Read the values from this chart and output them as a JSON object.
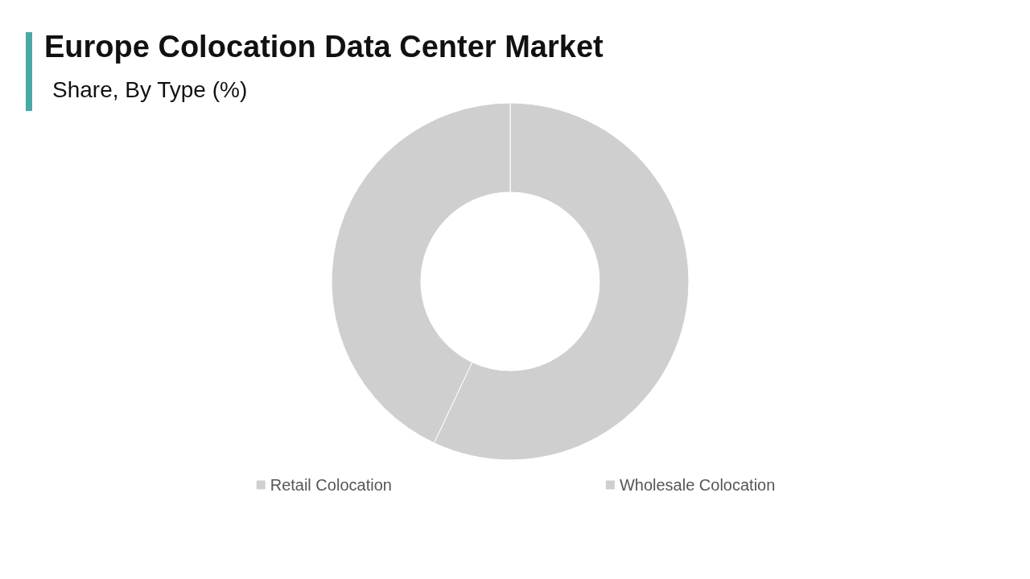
{
  "chart_data": {
    "type": "donut",
    "title": "Europe Colocation Data Center Market",
    "subtitle": "Share, By Type (%)",
    "categories": [
      "Retail Colocation",
      "Wholesale Colocation"
    ],
    "values": [
      57,
      43
    ],
    "colors": [
      "#d0cfd0",
      "#d0cfd0"
    ],
    "legend": "bottom"
  }
}
